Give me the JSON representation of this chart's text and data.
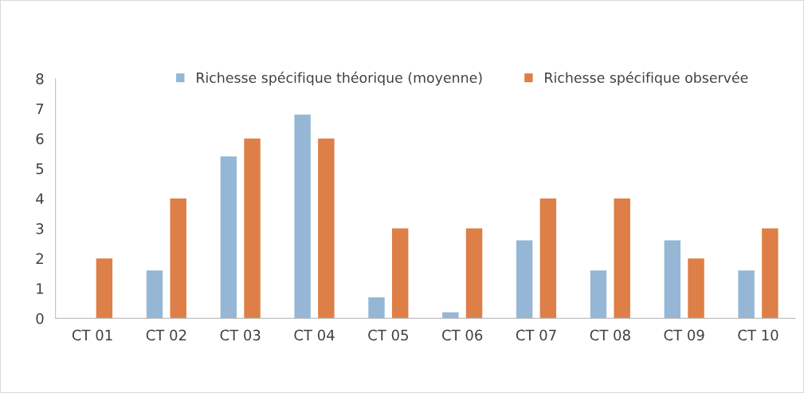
{
  "chart_data": {
    "type": "bar",
    "categories": [
      "CT 01",
      "CT 02",
      "CT 03",
      "CT 04",
      "CT 05",
      "CT 06",
      "CT 07",
      "CT 08",
      "CT 09",
      "CT 10"
    ],
    "series": [
      {
        "name": "Richesse spécifique théorique (moyenne)",
        "color": "#95b7d5",
        "values": [
          0,
          1.6,
          5.4,
          6.8,
          0.7,
          0.2,
          2.6,
          1.6,
          2.6,
          1.6
        ]
      },
      {
        "name": "Richesse spécifique observée",
        "color": "#dd7f47",
        "values": [
          2,
          4,
          6,
          6,
          3,
          3,
          4,
          4,
          2,
          3
        ]
      }
    ],
    "ylim": [
      0,
      8
    ],
    "yticks": [
      0,
      1,
      2,
      3,
      4,
      5,
      6,
      7,
      8
    ],
    "grid": false,
    "legend": "top"
  }
}
